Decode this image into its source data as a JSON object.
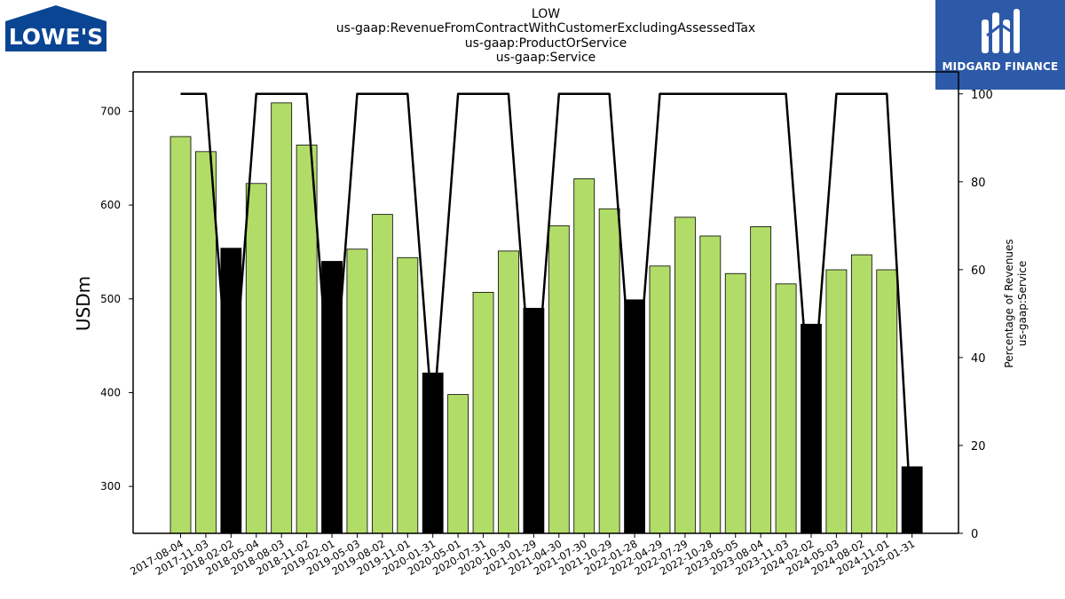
{
  "header": {
    "title_lines": [
      "LOW",
      "us-gaap:RevenueFromContractWithCustomerExcludingAssessedTax",
      "us-gaap:ProductOrService",
      "us-gaap:Service"
    ]
  },
  "logos": {
    "left_text": "LOWE'S",
    "right_text": "MIDGARD FINANCE",
    "left_color": "#0a4594",
    "right_color": "#2d5aa8"
  },
  "chart_data": {
    "type": "bar",
    "categories": [
      "2017-08-04",
      "2017-11-03",
      "2018-02-02",
      "2018-05-04",
      "2018-08-03",
      "2018-11-02",
      "2019-02-01",
      "2019-05-03",
      "2019-08-02",
      "2019-11-01",
      "2020-01-31",
      "2020-05-01",
      "2020-07-31",
      "2020-10-30",
      "2021-01-29",
      "2021-04-30",
      "2021-07-30",
      "2021-10-29",
      "2022-01-28",
      "2022-04-29",
      "2022-07-29",
      "2022-10-28",
      "2023-05-05",
      "2023-08-04",
      "2023-11-03",
      "2024-02-02",
      "2024-05-03",
      "2024-08-02",
      "2024-11-01",
      "2025-01-31"
    ],
    "series": [
      {
        "values": [
          673,
          657,
          554,
          623,
          709,
          664,
          540,
          553,
          590,
          544,
          421,
          398,
          507,
          551,
          490,
          578,
          628,
          596,
          499,
          535,
          587,
          567,
          527,
          577,
          516,
          473,
          531,
          547,
          531,
          321
        ],
        "fiscal_q4_flags": [
          0,
          0,
          1,
          0,
          0,
          0,
          1,
          0,
          0,
          0,
          1,
          0,
          0,
          0,
          1,
          0,
          0,
          0,
          1,
          0,
          0,
          0,
          0,
          0,
          0,
          1,
          0,
          0,
          0,
          1
        ]
      },
      {
        "values": [
          100,
          100,
          25,
          100,
          100,
          100,
          25,
          100,
          100,
          100,
          25,
          100,
          100,
          100,
          25,
          100,
          100,
          100,
          25,
          100,
          100,
          100,
          100,
          100,
          100,
          25,
          100,
          100,
          100,
          0
        ],
        "axis": "right"
      }
    ],
    "bar_colors": {
      "normal": "#b2dc68",
      "highlight": "#000000",
      "edge": "#000000"
    },
    "line_color": "#000000",
    "ylabel": "USDm",
    "ylim": [
      250,
      742
    ],
    "yticks": [
      300,
      400,
      500,
      600,
      700
    ],
    "y2label_lines": [
      "Percentage of Revenues",
      "us-gaap:Service"
    ],
    "y2lim": [
      0,
      105
    ],
    "y2ticks": [
      0,
      20,
      40,
      60,
      80,
      100
    ]
  }
}
